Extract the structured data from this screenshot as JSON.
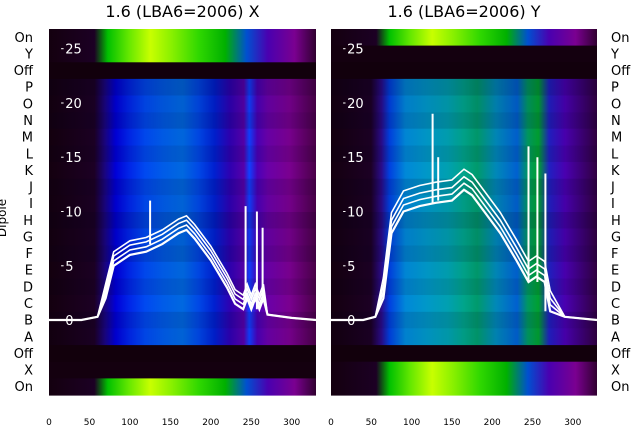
{
  "chart_data": {
    "type": "heatmap",
    "ylabel_left": "Dipole",
    "dipole_labels": [
      "On",
      "Y",
      "Off",
      "P",
      "O",
      "N",
      "M",
      "L",
      "K",
      "J",
      "I",
      "H",
      "G",
      "F",
      "E",
      "D",
      "C",
      "B",
      "A",
      "Off",
      "X",
      "On"
    ],
    "panels": [
      {
        "title": "1.6 (LBA6=2006) X",
        "x_ticks": [
          0,
          50,
          100,
          150,
          200,
          250,
          300
        ],
        "xlim": [
          0,
          330
        ],
        "overlay_y_ticks": [
          0,
          5,
          10,
          15,
          20,
          25
        ],
        "overlay_ylim": [
          -7,
          27
        ],
        "spectrum_x": [
          0,
          40,
          60,
          70,
          80,
          100,
          120,
          140,
          160,
          170,
          180,
          200,
          220,
          230,
          240,
          245,
          250,
          255,
          260,
          265,
          270,
          300,
          330
        ],
        "spectrum_y": [
          0,
          0,
          0.3,
          2,
          5,
          6,
          6.3,
          7,
          8,
          8.3,
          7.5,
          5.5,
          3,
          1.5,
          1,
          2,
          1,
          2,
          1,
          2,
          0.5,
          0.2,
          0
        ],
        "spikes": [
          [
            125,
            11
          ],
          [
            243,
            10.5
          ],
          [
            257,
            10
          ],
          [
            264,
            8.5
          ]
        ]
      },
      {
        "title": "1.6 (LBA6=2006) Y",
        "x_ticks": [
          0,
          50,
          100,
          150,
          200,
          250,
          300
        ],
        "xlim": [
          0,
          330
        ],
        "overlay_y_ticks": [
          0,
          5,
          10,
          15,
          20,
          25
        ],
        "overlay_ylim": [
          -7,
          27
        ],
        "spectrum_x": [
          0,
          40,
          55,
          65,
          75,
          90,
          110,
          130,
          150,
          165,
          175,
          190,
          210,
          230,
          245,
          255,
          265,
          272,
          290,
          330
        ],
        "spectrum_y": [
          0,
          0,
          0.3,
          2,
          8,
          10,
          10.5,
          10.8,
          11,
          12,
          11.5,
          10,
          8,
          5.5,
          3.5,
          4,
          3.5,
          0.8,
          0.3,
          0
        ],
        "spikes": [
          [
            126,
            19
          ],
          [
            133,
            15
          ],
          [
            245,
            16
          ],
          [
            256,
            15
          ],
          [
            266,
            13.5
          ]
        ]
      }
    ]
  }
}
